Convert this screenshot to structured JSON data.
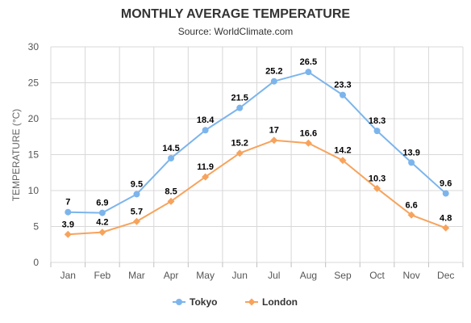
{
  "chart_data": {
    "type": "line",
    "title": "MONTHLY AVERAGE TEMPERATURE",
    "subtitle": "Source: WorldClimate.com",
    "ylabel": "TEMPERATURE (°C)",
    "xlabel": "",
    "categories": [
      "Jan",
      "Feb",
      "Mar",
      "Apr",
      "May",
      "Jun",
      "Jul",
      "Aug",
      "Sep",
      "Oct",
      "Nov",
      "Dec"
    ],
    "ylim": [
      0,
      30
    ],
    "yticks": [
      0,
      5,
      10,
      15,
      20,
      25,
      30
    ],
    "grid": true,
    "legend_position": "bottom",
    "series": [
      {
        "name": "Tokyo",
        "color": "#7cb5ec",
        "marker": "circle",
        "values": [
          7,
          6.9,
          9.5,
          14.5,
          18.4,
          21.5,
          25.2,
          26.5,
          23.3,
          18.3,
          13.9,
          9.6
        ]
      },
      {
        "name": "London",
        "color": "#f7a35c",
        "marker": "diamond",
        "values": [
          3.9,
          4.2,
          5.7,
          8.5,
          11.9,
          15.2,
          17,
          16.6,
          14.2,
          10.3,
          6.6,
          4.8
        ]
      }
    ]
  }
}
